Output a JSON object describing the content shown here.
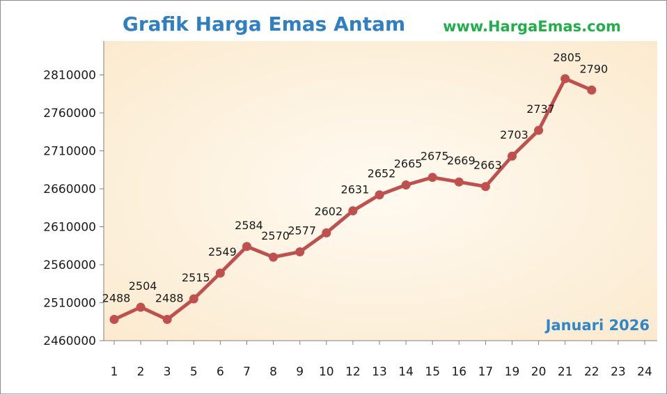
{
  "chart_data": {
    "type": "line",
    "title": "Grafik Harga Emas Antam",
    "source_text": "www.HargaEmas.com",
    "period_label": "Januari 2026",
    "xlabel": "",
    "ylabel": "",
    "ylim": [
      2460000,
      2850000
    ],
    "yticks": [
      2460000,
      2510000,
      2560000,
      2610000,
      2660000,
      2710000,
      2760000,
      2810000
    ],
    "categories": [
      "1",
      "2",
      "3",
      "5",
      "6",
      "7",
      "8",
      "9",
      "10",
      "12",
      "13",
      "14",
      "15",
      "16",
      "17",
      "19",
      "20",
      "21",
      "22",
      "23",
      "24"
    ],
    "series": [
      {
        "values": [
          2488000,
          2504000,
          2488000,
          2515000,
          2549000,
          2584000,
          2570000,
          2577000,
          2602000,
          2631000,
          2652000,
          2665000,
          2675000,
          2669000,
          2663000,
          2703000,
          2737000,
          2805000,
          2790000,
          null,
          null
        ],
        "data_labels": [
          "2488",
          "2504",
          "2488",
          "2515",
          "2549",
          "2584",
          "2570",
          "2577",
          "2602",
          "2631",
          "2652",
          "2665",
          "2675",
          "2669",
          "2663",
          "2703",
          "2737",
          "2805",
          "2790",
          "",
          ""
        ],
        "color": "#c0504d"
      }
    ],
    "plot_background": "#fdf3e1",
    "grid": false,
    "legend": "none"
  }
}
